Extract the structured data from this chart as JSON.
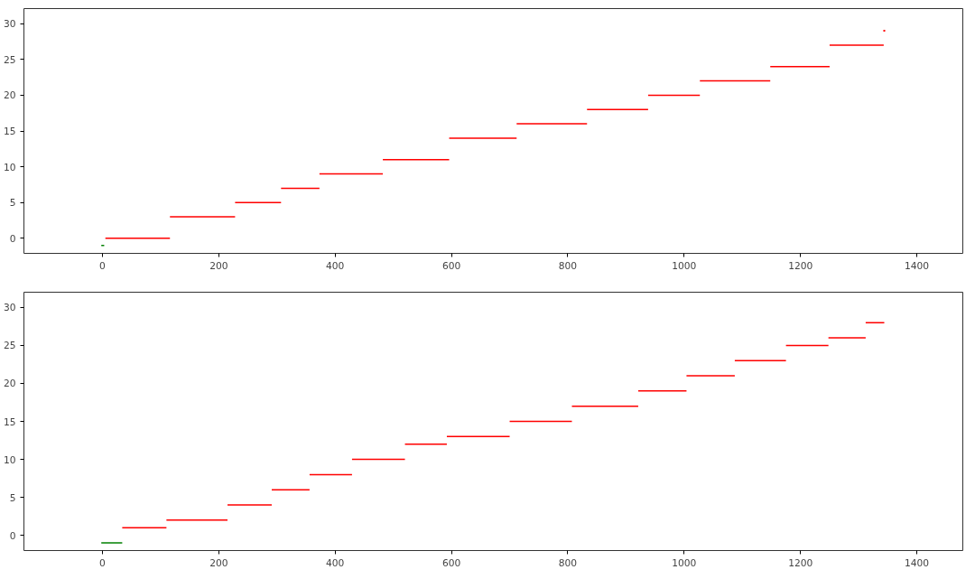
{
  "chart_data": [
    {
      "type": "line",
      "xlim": [
        -135,
        1479
      ],
      "ylim": [
        -2.1,
        32.1
      ],
      "xticks": [
        0,
        200,
        400,
        600,
        800,
        1000,
        1200,
        1400
      ],
      "yticks": [
        0,
        5,
        10,
        15,
        20,
        25,
        30
      ],
      "grid": false,
      "line_style": "solid",
      "series": [
        {
          "color": "#008000",
          "x": [
            -2,
            3
          ],
          "values": [
            -1,
            -1
          ]
        },
        {
          "color": "#ff0000",
          "x": [
            5,
            116,
            null,
            116,
            228,
            null,
            228,
            307,
            null,
            307,
            373,
            null,
            373,
            482,
            null,
            482,
            596,
            null,
            596,
            712,
            null,
            712,
            833,
            null,
            833,
            938,
            null,
            938,
            1027,
            null,
            1027,
            1148,
            null,
            1148,
            1250,
            null,
            1250,
            1343
          ],
          "values": [
            0,
            0,
            null,
            3,
            3,
            null,
            5,
            5,
            null,
            7,
            7,
            null,
            9,
            9,
            null,
            11,
            11,
            null,
            14,
            14,
            null,
            16,
            16,
            null,
            18,
            18,
            null,
            20,
            20,
            null,
            22,
            22,
            null,
            24,
            24,
            null,
            27,
            27
          ]
        },
        {
          "type": "scatter",
          "marker": "square",
          "color": "#ff0000",
          "x": [
            1344
          ],
          "values": [
            29
          ]
        }
      ]
    },
    {
      "type": "line",
      "xlim": [
        -135,
        1479
      ],
      "ylim": [
        -2,
        32
      ],
      "xticks": [
        0,
        200,
        400,
        600,
        800,
        1000,
        1200,
        1400
      ],
      "yticks": [
        0,
        5,
        10,
        15,
        20,
        25,
        30
      ],
      "grid": false,
      "line_style": "solid",
      "series": [
        {
          "color": "#008000",
          "x": [
            -2,
            34
          ],
          "values": [
            -1,
            -1
          ]
        },
        {
          "color": "#ff0000",
          "x": [
            34,
            110,
            null,
            110,
            215,
            null,
            215,
            291,
            null,
            291,
            356,
            null,
            356,
            429,
            null,
            429,
            520,
            null,
            520,
            592,
            null,
            592,
            700,
            null,
            700,
            807,
            null,
            807,
            921,
            null,
            921,
            1004,
            null,
            1004,
            1087,
            null,
            1087,
            1175,
            null,
            1175,
            1248,
            null,
            1248,
            1312,
            null,
            1312,
            1344
          ],
          "values": [
            1,
            1,
            null,
            2,
            2,
            null,
            4,
            4,
            null,
            6,
            6,
            null,
            8,
            8,
            null,
            10,
            10,
            null,
            12,
            12,
            null,
            13,
            13,
            null,
            15,
            15,
            null,
            17,
            17,
            null,
            19,
            19,
            null,
            21,
            21,
            null,
            23,
            23,
            null,
            25,
            25,
            null,
            26,
            26,
            null,
            28,
            28
          ]
        }
      ]
    }
  ]
}
